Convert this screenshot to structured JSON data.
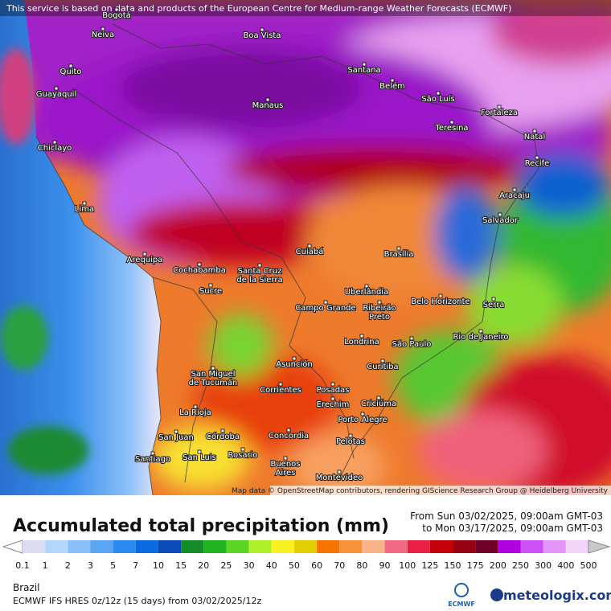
{
  "banner": "This service is based on data and products of the European Centre for Medium-range Weather Forecasts (ECMWF)",
  "attribution": "Map data © OpenStreetMap contributors, rendering GIScience Research Group @ Heidelberg University",
  "cities": [
    "Bogotá",
    "Neiva",
    "Boa Vista",
    "Quito",
    "Guayaquil",
    "Santana",
    "Belém",
    "São Luís",
    "Fortaleza",
    "Manaus",
    "Teresina",
    "Natal",
    "Chiclayo",
    "Recife",
    "Aracaju",
    "Lima",
    "Salvador",
    "Cuiabá",
    "Brasília",
    "Arequipa",
    "Cochabamba",
    [
      "Santa Cruz",
      "de la Sierra"
    ],
    "Sucre",
    "Uberlândia",
    "Belo Horizonte",
    "Serra",
    "Campo Grande",
    [
      "Ribeirão",
      "Preto"
    ],
    "Londrina",
    "São Paulo",
    "Rio de Janeiro",
    "Curitiba",
    "Asunción",
    [
      "San Miguel",
      "de Tucumán"
    ],
    "Corrientes",
    "Posadas",
    "Erechim",
    "Criciúma",
    "La Rioja",
    "Porto Alegre",
    "San Juan",
    "Córdoba",
    "Concordia",
    "Pelotas",
    "Santiago",
    "San Luis",
    "Rosario",
    [
      "Buenos",
      "Aires"
    ],
    "Montevideo"
  ],
  "legend": {
    "title": "Accumulated total precipitation (mm)",
    "from": "From Sun 03/02/2025, 09:00am GMT-03",
    "to": "to Mon 03/17/2025, 09:00am GMT-03",
    "labels": [
      "0.1",
      "1",
      "2",
      "3",
      "5",
      "7",
      "10",
      "15",
      "20",
      "25",
      "30",
      "40",
      "50",
      "60",
      "70",
      "80",
      "90",
      "100",
      "125",
      "150",
      "175",
      "200",
      "250",
      "300",
      "400",
      "500"
    ],
    "colors": [
      "#dcdcf4",
      "#b4d6fa",
      "#8cc0f8",
      "#5aa6f4",
      "#2a8af0",
      "#0a6ce0",
      "#0a4cb8",
      "#148c28",
      "#22b422",
      "#5cd424",
      "#b0f028",
      "#f8f020",
      "#e4d000",
      "#f87400",
      "#f89238",
      "#f8b488",
      "#f06a86",
      "#e82046",
      "#c40008",
      "#960010",
      "#700028",
      "#b000e0",
      "#cc50f4",
      "#e496f8",
      "#f4d4fa"
    ],
    "under_color": "#ffffff",
    "over_color": "#c8c8c8"
  },
  "region": "Brazil",
  "model": "ECMWF IFS HRES 0z/12z (15 days) from  03/02/2025/12z",
  "logo_ecmwf": "ECMWF",
  "logo_site": "meteologix.com"
}
